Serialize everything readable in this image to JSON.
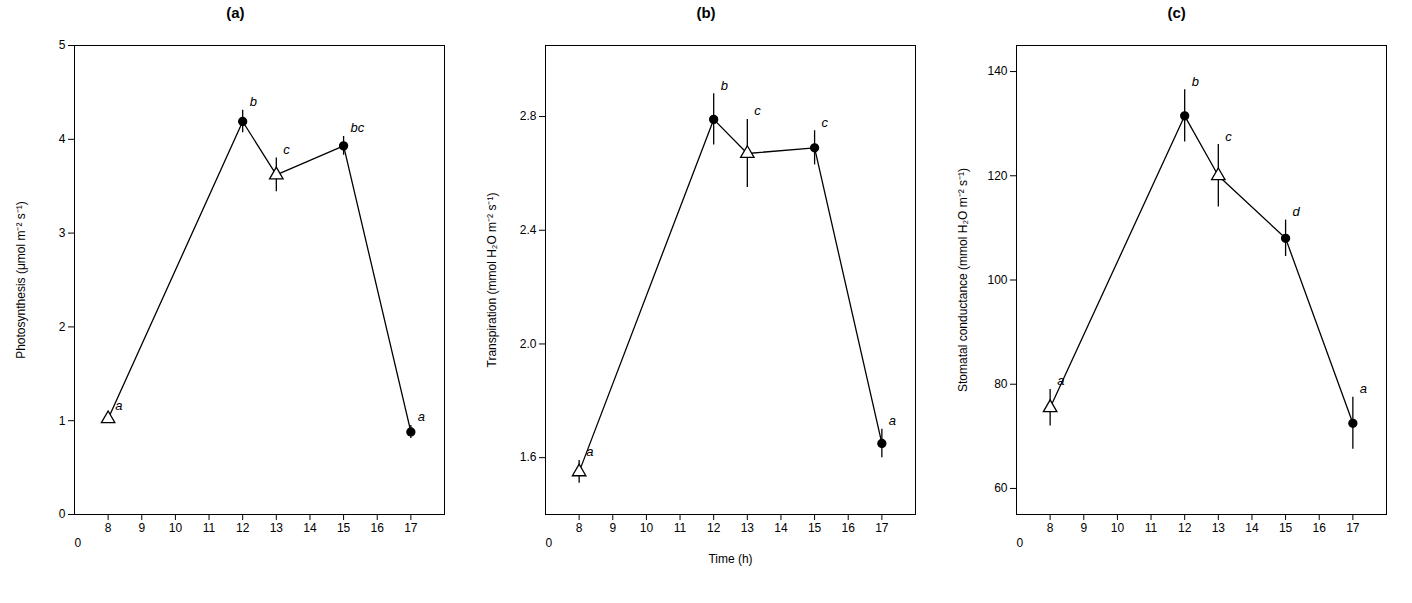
{
  "chart_data": [
    {
      "type": "line",
      "title": "(a)",
      "x": [
        8,
        12,
        13,
        15,
        17
      ],
      "values": [
        1.02,
        4.19,
        3.62,
        3.93,
        0.88
      ],
      "yerr": [
        0.05,
        0.12,
        0.18,
        0.1,
        0.07
      ],
      "point_labels": [
        "a",
        "b",
        "c",
        "bc",
        "a"
      ],
      "markers": [
        "triangle-open",
        "circle-filled",
        "triangle-open",
        "circle-filled",
        "circle-filled"
      ],
      "color": "black",
      "ylabel": "Photosynthesis (μmol m⁻² s⁻¹)",
      "xlim": [
        7,
        18
      ],
      "xticks": [
        8,
        9,
        10,
        11,
        12,
        13,
        14,
        15,
        16,
        17
      ],
      "ylim": [
        0,
        5
      ],
      "yticks": [
        0,
        1,
        2,
        3,
        4,
        5
      ],
      "annotations": [
        "0"
      ]
    },
    {
      "type": "line",
      "title": "(b)",
      "x": [
        8,
        12,
        13,
        15,
        17
      ],
      "values": [
        1.55,
        2.79,
        2.67,
        2.69,
        1.65
      ],
      "yerr": [
        0.04,
        0.09,
        0.12,
        0.06,
        0.05
      ],
      "point_labels": [
        "a",
        "b",
        "c",
        "c",
        "a"
      ],
      "markers": [
        "triangle-open",
        "circle-filled",
        "triangle-open",
        "circle-filled",
        "circle-filled"
      ],
      "color": "black",
      "ylabel": "Transpiration (mmol H₂O m⁻² s⁻¹)",
      "xlabel": "Time (h)",
      "xlim": [
        7,
        18
      ],
      "xticks": [
        8,
        9,
        10,
        11,
        12,
        13,
        14,
        15,
        16,
        17
      ],
      "ylim": [
        1.4,
        3.05
      ],
      "yticks": [
        1.6,
        {
          "value": 2,
          "label": "2.0"
        },
        2.4,
        2.8
      ],
      "annotations": [
        "0"
      ]
    },
    {
      "type": "line",
      "title": "(c)",
      "x": [
        8,
        12,
        13,
        15,
        17
      ],
      "values": [
        75.5,
        131.5,
        120.0,
        108.0,
        72.5
      ],
      "yerr": [
        3.5,
        5.0,
        6.0,
        3.5,
        5.0
      ],
      "point_labels": [
        "a",
        "b",
        "c",
        "d",
        "a"
      ],
      "markers": [
        "triangle-open",
        "circle-filled",
        "triangle-open",
        "circle-filled",
        "circle-filled"
      ],
      "color": "black",
      "ylabel": "Stomatal conductance (mmol H₂O m⁻² s⁻¹)",
      "xlim": [
        7,
        18
      ],
      "xticks": [
        8,
        9,
        10,
        11,
        12,
        13,
        14,
        15,
        16,
        17
      ],
      "ylim": [
        55,
        145
      ],
      "yticks": [
        60,
        80,
        100,
        120,
        140
      ],
      "annotations": [
        "0"
      ]
    }
  ]
}
